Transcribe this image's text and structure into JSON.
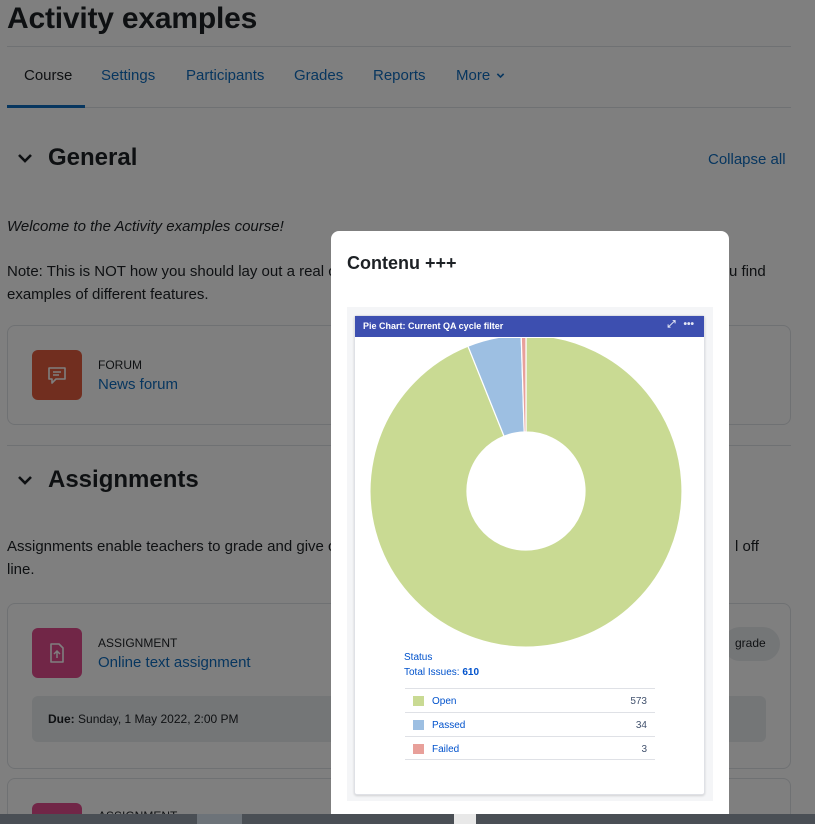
{
  "course": {
    "title": "Activity examples"
  },
  "tabs": [
    {
      "label": "Course"
    },
    {
      "label": "Settings"
    },
    {
      "label": "Participants"
    },
    {
      "label": "Grades"
    },
    {
      "label": "Reports"
    },
    {
      "label": "More"
    }
  ],
  "sections": {
    "general": {
      "title": "General",
      "collapse_all": "Collapse all",
      "welcome": "Welcome to the Activity examples course!",
      "note_left": "Note: This is NOT how you should lay out a real c",
      "note_right": "u find",
      "note_line2": "examples of different features."
    },
    "assignments": {
      "title": "Assignments",
      "intro_left": "Assignments enable teachers to grade and give c",
      "intro_right": "l off",
      "intro_line2": "line."
    }
  },
  "activities": {
    "forum": {
      "type": "FORUM",
      "name": "News forum",
      "icon": "forum-icon",
      "icon_color": "#e25d3e"
    },
    "assignment": {
      "type": "ASSIGNMENT",
      "name": "Online text assignment",
      "icon": "assignment-icon",
      "icon_color": "#e34c8f",
      "due_label": "Due:",
      "due_value": "Sunday, 1 May 2022, 2:00 PM",
      "grade_text": "grade"
    },
    "assignment2": {
      "type": "ASSIGNMENT"
    }
  },
  "modal": {
    "title": "Contenu +++",
    "gadget": {
      "header": "Pie Chart: Current QA cycle filter",
      "expand_icon": "expand-icon",
      "more_icon": "more-icon",
      "status_label": "Status",
      "total_label": "Total Issues:",
      "total_value": "610"
    }
  },
  "chart_data": {
    "type": "pie",
    "title": "Pie Chart: Current QA cycle filter",
    "donut": true,
    "categories": [
      "Open",
      "Passed",
      "Failed"
    ],
    "values": [
      573,
      34,
      3
    ],
    "colors": [
      "#c9da93",
      "#9dbfe2",
      "#e8a09a"
    ],
    "total": 610,
    "legend": "bottom"
  },
  "colors": {
    "accent": "#0f6cbf",
    "gadget_header": "#3d4fb0",
    "overlay": "rgba(0,0,0,0.5)"
  }
}
